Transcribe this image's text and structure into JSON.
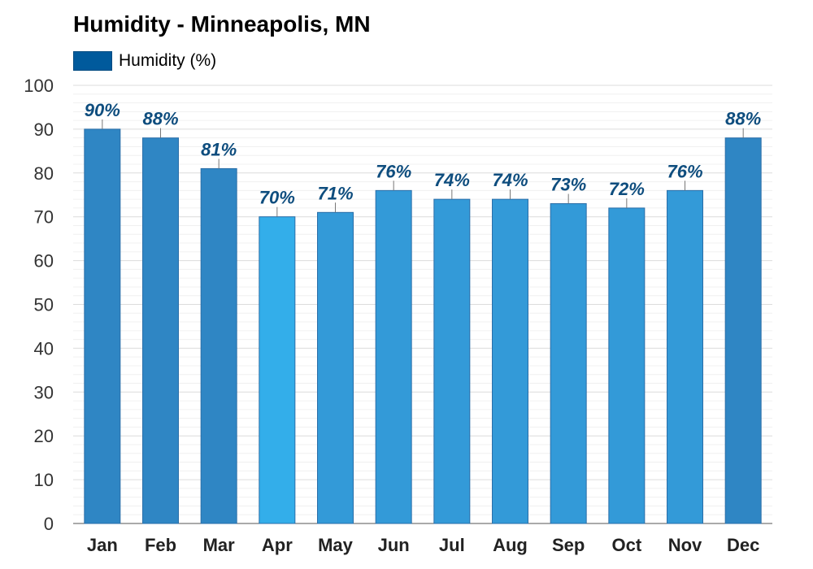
{
  "chart_data": {
    "type": "bar",
    "title": "Humidity - Minneapolis, MN",
    "series": [
      {
        "name": "Humidity (%)",
        "values": [
          90,
          88,
          81,
          70,
          71,
          76,
          74,
          74,
          73,
          72,
          76,
          88
        ]
      }
    ],
    "categories": [
      "Jan",
      "Feb",
      "Mar",
      "Apr",
      "May",
      "Jun",
      "Jul",
      "Aug",
      "Sep",
      "Oct",
      "Nov",
      "Dec"
    ],
    "data_labels": [
      "90%",
      "88%",
      "81%",
      "70%",
      "71%",
      "76%",
      "74%",
      "74%",
      "73%",
      "72%",
      "76%",
      "88%"
    ],
    "ylim": [
      0,
      100
    ],
    "yticks": [
      0,
      10,
      20,
      30,
      40,
      50,
      60,
      70,
      80,
      90,
      100
    ],
    "ytick_labels": [
      "0",
      "10",
      "20",
      "30",
      "40",
      "50",
      "60",
      "70",
      "80",
      "90",
      "100"
    ],
    "xlabel": "",
    "ylabel": "",
    "grid": true,
    "legend_position": "top-left",
    "colors": {
      "legend": "#005a9c",
      "bar_high": "#2f86c4",
      "bar_mid": "#339ad8",
      "bar_low": "#33aeea",
      "bar_outline": "#2a6ea8",
      "label": "#0e4d7e",
      "grid": "#e4e4e4",
      "axis": "#333333"
    }
  }
}
